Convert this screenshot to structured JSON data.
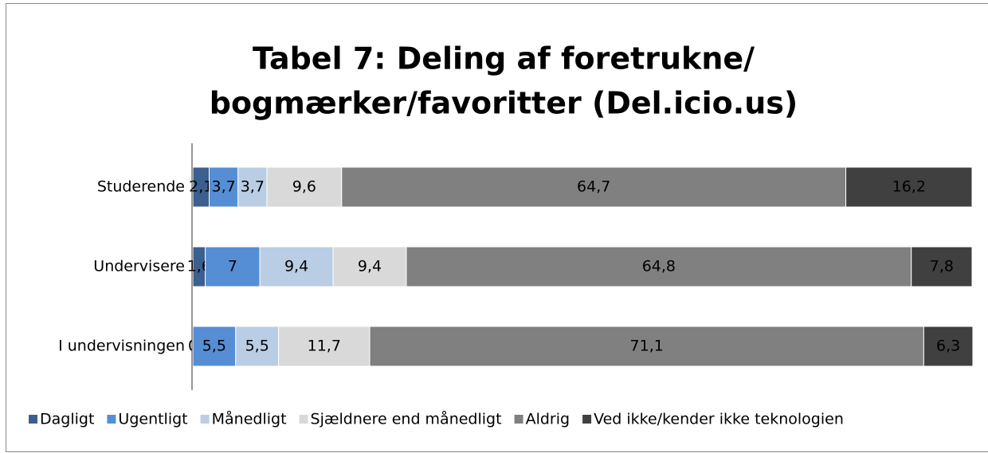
{
  "chart_data": {
    "type": "stacked-barh",
    "title": [
      "Tabel 7: Deling af foretrukne/",
      "bogmærker/favoritter (Del.icio.us)"
    ],
    "categories": [
      "Studerende",
      "Undervisere",
      "I undervisningen"
    ],
    "xlim": [
      0,
      100
    ],
    "legend": "bottom",
    "series": [
      {
        "name": "Dagligt",
        "color": "#3b5f8e",
        "values": [
          2.1,
          1.6,
          0
        ],
        "value_labels": [
          "2,1",
          "1,6",
          "0"
        ]
      },
      {
        "name": "Ugentligt",
        "color": "#558ed5",
        "values": [
          3.7,
          7,
          5.5
        ],
        "value_labels": [
          "3,7",
          "7",
          "5,5"
        ]
      },
      {
        "name": "Månedligt",
        "color": "#b9cde5",
        "values": [
          3.7,
          9.4,
          5.5
        ],
        "value_labels": [
          "3,7",
          "9,4",
          "5,5"
        ]
      },
      {
        "name": "Sjældnere end månedligt",
        "color": "#d9d9d9",
        "values": [
          9.6,
          9.4,
          11.7
        ],
        "value_labels": [
          "9,6",
          "9,4",
          "11,7"
        ]
      },
      {
        "name": "Aldrig",
        "color": "#808080",
        "values": [
          64.7,
          64.8,
          71.1
        ],
        "value_labels": [
          "64,7",
          "64,8",
          "71,1"
        ]
      },
      {
        "name": "Ved ikke/kender ikke teknologien",
        "color": "#404040",
        "values": [
          16.2,
          7.8,
          6.3
        ],
        "value_labels": [
          "16,2",
          "7,8",
          "6,3"
        ]
      }
    ]
  }
}
